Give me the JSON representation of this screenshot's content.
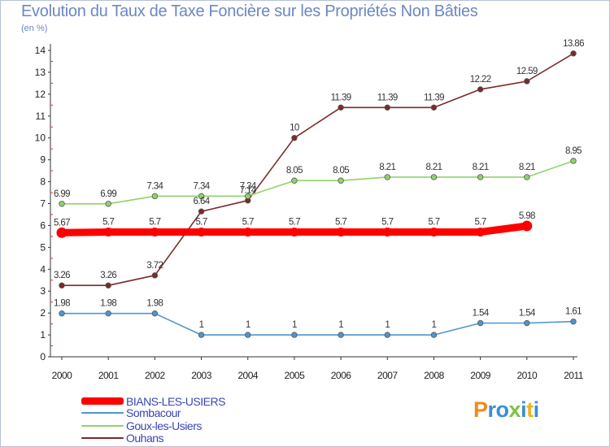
{
  "title": "Evolution du Taux de Taxe Foncière sur les Propriétés Non Bâties",
  "subtitle": "(en %)",
  "logo": {
    "text": "Proxiti",
    "colors": [
      "#f08a1c",
      "#3a8fd6",
      "#3a8fd6",
      "#7cc242",
      "#3a8fd6",
      "#f0b31c",
      "#3a8fd6"
    ]
  },
  "chart_data": {
    "type": "line",
    "x": [
      2000,
      2001,
      2002,
      2003,
      2004,
      2005,
      2006,
      2007,
      2008,
      2009,
      2010,
      2011
    ],
    "ylim": [
      0,
      14
    ],
    "yticks": [
      0,
      1,
      2,
      3,
      4,
      5,
      6,
      7,
      8,
      9,
      10,
      11,
      12,
      13,
      14
    ],
    "grid": false,
    "legend_position": "bottom-left",
    "series": [
      {
        "name": "Ouhans",
        "color": "#7a2a2a",
        "values": [
          3.26,
          3.26,
          3.72,
          6.64,
          7.14,
          10,
          11.39,
          11.39,
          11.39,
          12.22,
          12.59,
          13.86
        ],
        "labels": [
          "3.26",
          "3.26",
          "3.72",
          "6.64",
          "7.14",
          "10",
          "11.39",
          "11.39",
          "11.39",
          "12.22",
          "12.59",
          "13.86"
        ]
      },
      {
        "name": "Goux-les-Usiers",
        "color": "#8fd46a",
        "values": [
          6.99,
          6.99,
          7.34,
          7.34,
          7.34,
          8.05,
          8.05,
          8.21,
          8.21,
          8.21,
          8.21,
          8.95
        ],
        "labels": [
          "6.99",
          "6.99",
          "7.34",
          "7.34",
          "7.34",
          "8.05",
          "8.05",
          "8.21",
          "8.21",
          "8.21",
          "8.21",
          "8.95"
        ]
      },
      {
        "name": "Sombacour",
        "color": "#4f95cf",
        "values": [
          1.98,
          1.98,
          1.98,
          1,
          1,
          1,
          1,
          1,
          1,
          1.54,
          1.54,
          1.61
        ],
        "labels": [
          "1.98",
          "1.98",
          "1.98",
          "1",
          "1",
          "1",
          "1",
          "1",
          "1",
          "1.54",
          "1.54",
          "1.61"
        ]
      },
      {
        "name": "BIANS-LES-USIERS",
        "color": "#ff0000",
        "highlight": true,
        "values": [
          5.67,
          5.7,
          5.7,
          5.7,
          5.7,
          5.7,
          5.7,
          5.7,
          5.7,
          5.7,
          5.98,
          null
        ],
        "labels": [
          "5.67",
          "5.7",
          "5.7",
          "5.7",
          "5.7",
          "5.7",
          "5.7",
          "5.7",
          "5.7",
          "5.7",
          "5.98",
          null
        ]
      }
    ],
    "legend": [
      "BIANS-LES-USIERS",
      "Sombacour",
      "Goux-les-Usiers",
      "Ouhans"
    ]
  }
}
